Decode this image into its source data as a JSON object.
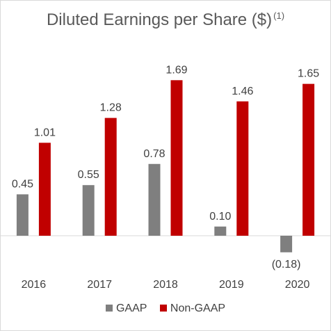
{
  "chart_data": {
    "type": "bar",
    "title": "Diluted Earnings per Share ($)",
    "title_footnote": "(1)",
    "categories": [
      "2016",
      "2017",
      "2018",
      "2019",
      "2020"
    ],
    "series": [
      {
        "name": "GAAP",
        "color": "#7f7f7f",
        "values": [
          0.45,
          0.55,
          0.78,
          0.1,
          -0.18
        ],
        "labels": [
          "0.45",
          "0.55",
          "0.78",
          "0.10",
          "(0.18)"
        ]
      },
      {
        "name": "Non-GAAP",
        "color": "#c00000",
        "values": [
          1.01,
          1.28,
          1.69,
          1.46,
          1.65
        ],
        "labels": [
          "1.01",
          "1.28",
          "1.69",
          "1.46",
          "1.65"
        ]
      }
    ],
    "ylim": [
      -0.23,
      1.7
    ],
    "grid": false,
    "legend_position": "bottom"
  }
}
